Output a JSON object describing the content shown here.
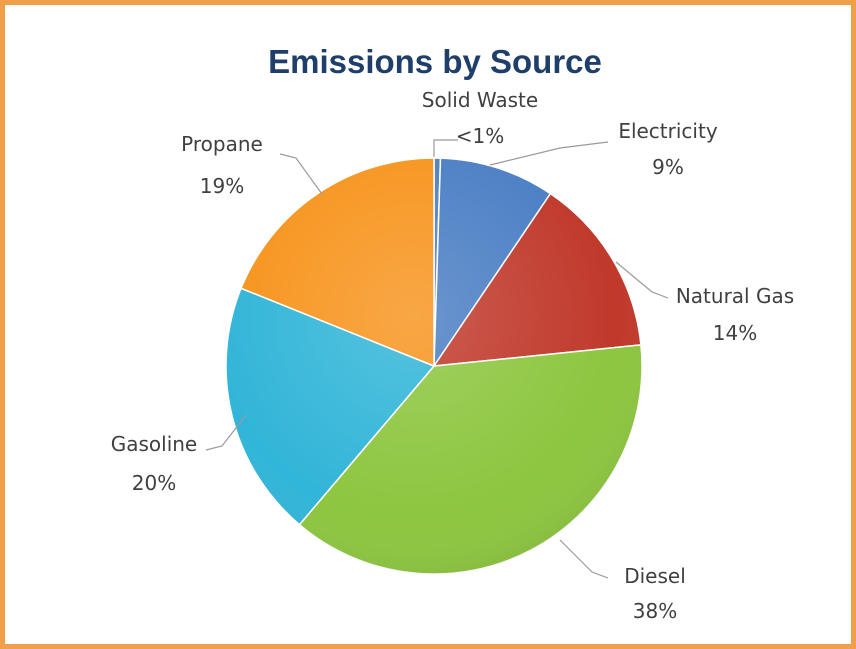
{
  "chart_data": {
    "type": "pie",
    "title": "Emissions by Source",
    "slices": [
      {
        "name": "Solid Waste",
        "value": 0.5,
        "label": "<1%",
        "color": "#4f81bd"
      },
      {
        "name": "Electricity",
        "value": 9,
        "label": "9%",
        "color": "#4a7ec4"
      },
      {
        "name": "Natural Gas",
        "value": 14,
        "label": "14%",
        "color": "#c0392b"
      },
      {
        "name": "Diesel",
        "value": 38,
        "label": "38%",
        "color": "#8dc63f"
      },
      {
        "name": "Gasoline",
        "value": 20,
        "label": "20%",
        "color": "#31b5d8"
      },
      {
        "name": "Propane",
        "value": 19,
        "label": "19%",
        "color": "#f7941d"
      }
    ],
    "legend": "none",
    "grid": false
  },
  "colors": {
    "border": "#f0a04b",
    "title": "#1f3f6a"
  }
}
